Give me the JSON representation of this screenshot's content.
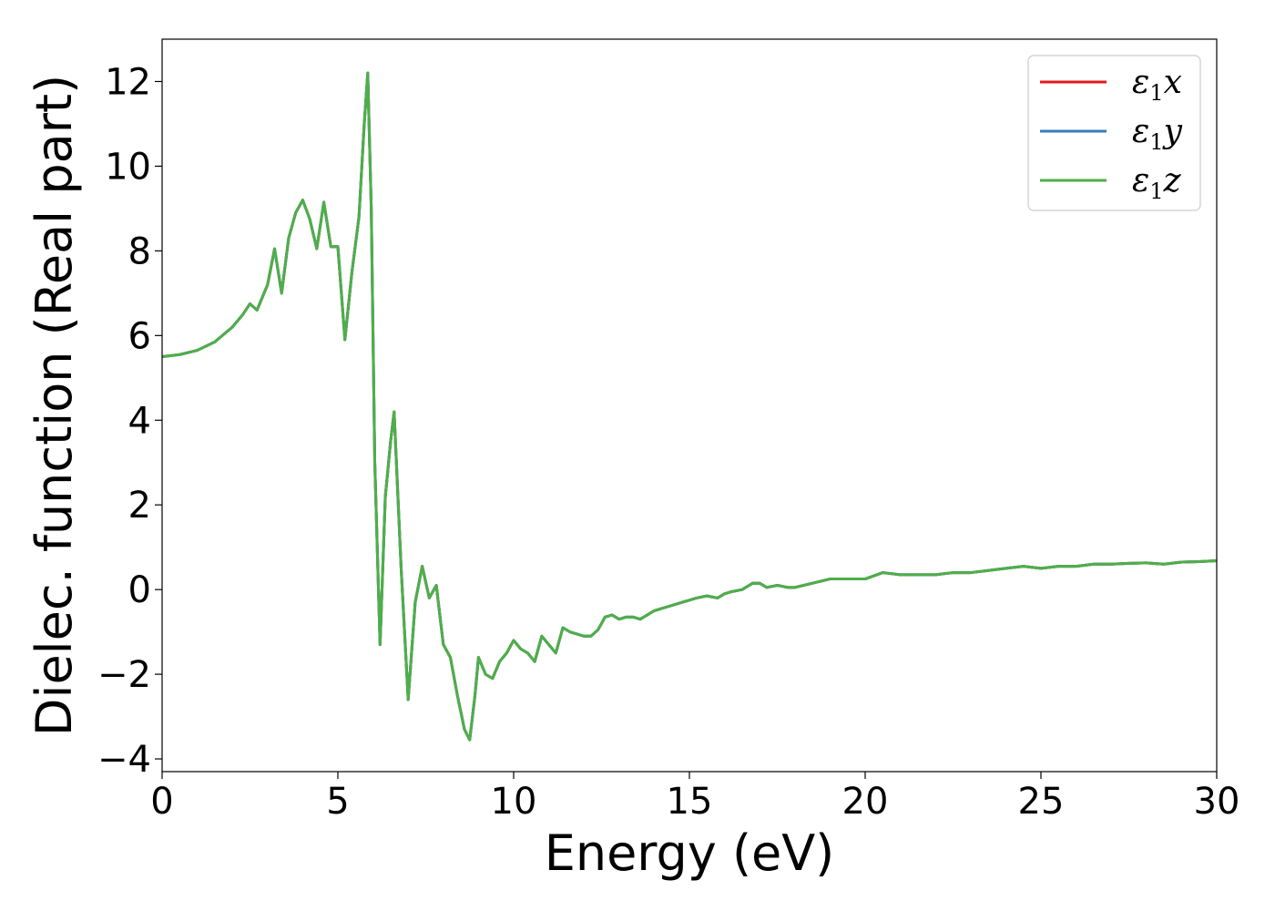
{
  "chart_data": {
    "type": "line",
    "title": "",
    "xlabel": "Energy (eV)",
    "ylabel": "Dielec. function (Real part)",
    "xlim": [
      0,
      30
    ],
    "ylim": [
      -4.3,
      13
    ],
    "xticks": [
      0,
      5,
      10,
      15,
      20,
      25,
      30
    ],
    "yticks": [
      -4,
      -2,
      0,
      2,
      4,
      6,
      8,
      10,
      12
    ],
    "xtick_labels": [
      "0",
      "5",
      "10",
      "15",
      "20",
      "25",
      "30"
    ],
    "ytick_labels": [
      "−4",
      "−2",
      "0",
      "2",
      "4",
      "6",
      "8",
      "10",
      "12"
    ],
    "grid": false,
    "legend_position": "top-right",
    "series": [
      {
        "name": "ε₁x",
        "legend": {
          "main": "ε",
          "sub": "1",
          "suffix": "x"
        },
        "color": "#e41a1c",
        "x": [
          0,
          0.5,
          1,
          1.5,
          2,
          2.3,
          2.5,
          2.7,
          3,
          3.2,
          3.4,
          3.6,
          3.8,
          4,
          4.2,
          4.4,
          4.6,
          4.8,
          5,
          5.2,
          5.4,
          5.6,
          5.75,
          5.85,
          5.95,
          6.05,
          6.2,
          6.35,
          6.5,
          6.6,
          6.8,
          7,
          7.2,
          7.4,
          7.6,
          7.8,
          8,
          8.2,
          8.4,
          8.6,
          8.75,
          8.9,
          9,
          9.2,
          9.4,
          9.6,
          9.8,
          10,
          10.2,
          10.4,
          10.6,
          10.8,
          11,
          11.2,
          11.4,
          11.6,
          11.8,
          12,
          12.2,
          12.4,
          12.6,
          12.8,
          13,
          13.2,
          13.4,
          13.6,
          13.8,
          14,
          14.2,
          14.4,
          14.6,
          14.8,
          15,
          15.2,
          15.5,
          15.8,
          16,
          16.2,
          16.5,
          16.8,
          17,
          17.2,
          17.5,
          17.8,
          18,
          18.5,
          19,
          19.5,
          20,
          20.5,
          21,
          21.5,
          22,
          22.5,
          23,
          23.5,
          24,
          24.5,
          25,
          25.5,
          26,
          26.5,
          27,
          27.5,
          28,
          28.5,
          29,
          29.5,
          30
        ],
        "y": [
          5.5,
          5.55,
          5.65,
          5.85,
          6.2,
          6.5,
          6.75,
          6.6,
          7.2,
          8.05,
          7.0,
          8.3,
          8.9,
          9.2,
          8.75,
          8.05,
          9.15,
          8.1,
          8.1,
          5.9,
          7.5,
          8.8,
          11.0,
          12.2,
          9.0,
          3.0,
          -1.3,
          2.2,
          3.5,
          4.2,
          0.5,
          -2.6,
          -0.3,
          0.55,
          -0.2,
          0.1,
          -1.3,
          -1.6,
          -2.5,
          -3.3,
          -3.55,
          -2.5,
          -1.6,
          -2.0,
          -2.1,
          -1.7,
          -1.5,
          -1.2,
          -1.4,
          -1.5,
          -1.7,
          -1.1,
          -1.3,
          -1.5,
          -0.9,
          -1.0,
          -1.05,
          -1.1,
          -1.1,
          -0.95,
          -0.65,
          -0.6,
          -0.7,
          -0.65,
          -0.65,
          -0.7,
          -0.6,
          -0.5,
          -0.45,
          -0.4,
          -0.35,
          -0.3,
          -0.25,
          -0.2,
          -0.15,
          -0.2,
          -0.1,
          -0.05,
          0.0,
          0.15,
          0.15,
          0.05,
          0.1,
          0.05,
          0.05,
          0.15,
          0.25,
          0.25,
          0.25,
          0.4,
          0.35,
          0.35,
          0.35,
          0.4,
          0.4,
          0.45,
          0.5,
          0.55,
          0.5,
          0.55,
          0.55,
          0.6,
          0.6,
          0.62,
          0.63,
          0.6,
          0.65,
          0.66,
          0.68
        ]
      },
      {
        "name": "ε₁y",
        "legend": {
          "main": "ε",
          "sub": "1",
          "suffix": "y"
        },
        "color": "#377eb8",
        "x": [
          0,
          0.5,
          1,
          1.5,
          2,
          2.3,
          2.5,
          2.7,
          3,
          3.2,
          3.4,
          3.6,
          3.8,
          4,
          4.2,
          4.4,
          4.6,
          4.8,
          5,
          5.2,
          5.4,
          5.6,
          5.75,
          5.85,
          5.95,
          6.05,
          6.2,
          6.35,
          6.5,
          6.6,
          6.8,
          7,
          7.2,
          7.4,
          7.6,
          7.8,
          8,
          8.2,
          8.4,
          8.6,
          8.75,
          8.9,
          9,
          9.2,
          9.4,
          9.6,
          9.8,
          10,
          10.2,
          10.4,
          10.6,
          10.8,
          11,
          11.2,
          11.4,
          11.6,
          11.8,
          12,
          12.2,
          12.4,
          12.6,
          12.8,
          13,
          13.2,
          13.4,
          13.6,
          13.8,
          14,
          14.2,
          14.4,
          14.6,
          14.8,
          15,
          15.2,
          15.5,
          15.8,
          16,
          16.2,
          16.5,
          16.8,
          17,
          17.2,
          17.5,
          17.8,
          18,
          18.5,
          19,
          19.5,
          20,
          20.5,
          21,
          21.5,
          22,
          22.5,
          23,
          23.5,
          24,
          24.5,
          25,
          25.5,
          26,
          26.5,
          27,
          27.5,
          28,
          28.5,
          29,
          29.5,
          30
        ],
        "y": [
          5.5,
          5.55,
          5.65,
          5.85,
          6.2,
          6.5,
          6.75,
          6.6,
          7.2,
          8.05,
          7.0,
          8.3,
          8.9,
          9.2,
          8.75,
          8.05,
          9.15,
          8.1,
          8.1,
          5.9,
          7.5,
          8.8,
          11.0,
          12.2,
          9.0,
          3.0,
          -1.3,
          2.2,
          3.5,
          4.2,
          0.5,
          -2.6,
          -0.3,
          0.55,
          -0.2,
          0.1,
          -1.3,
          -1.6,
          -2.5,
          -3.3,
          -3.55,
          -2.5,
          -1.6,
          -2.0,
          -2.1,
          -1.7,
          -1.5,
          -1.2,
          -1.4,
          -1.5,
          -1.7,
          -1.1,
          -1.3,
          -1.5,
          -0.9,
          -1.0,
          -1.05,
          -1.1,
          -1.1,
          -0.95,
          -0.65,
          -0.6,
          -0.7,
          -0.65,
          -0.65,
          -0.7,
          -0.6,
          -0.5,
          -0.45,
          -0.4,
          -0.35,
          -0.3,
          -0.25,
          -0.2,
          -0.15,
          -0.2,
          -0.1,
          -0.05,
          0.0,
          0.15,
          0.15,
          0.05,
          0.1,
          0.05,
          0.05,
          0.15,
          0.25,
          0.25,
          0.25,
          0.4,
          0.35,
          0.35,
          0.35,
          0.4,
          0.4,
          0.45,
          0.5,
          0.55,
          0.5,
          0.55,
          0.55,
          0.6,
          0.6,
          0.62,
          0.63,
          0.6,
          0.65,
          0.66,
          0.68
        ]
      },
      {
        "name": "ε₁z",
        "legend": {
          "main": "ε",
          "sub": "1",
          "suffix": "z"
        },
        "color": "#4daf4a",
        "x": [
          0,
          0.5,
          1,
          1.5,
          2,
          2.3,
          2.5,
          2.7,
          3,
          3.2,
          3.4,
          3.6,
          3.8,
          4,
          4.2,
          4.4,
          4.6,
          4.8,
          5,
          5.2,
          5.4,
          5.6,
          5.75,
          5.85,
          5.95,
          6.05,
          6.2,
          6.35,
          6.5,
          6.6,
          6.8,
          7,
          7.2,
          7.4,
          7.6,
          7.8,
          8,
          8.2,
          8.4,
          8.6,
          8.75,
          8.9,
          9,
          9.2,
          9.4,
          9.6,
          9.8,
          10,
          10.2,
          10.4,
          10.6,
          10.8,
          11,
          11.2,
          11.4,
          11.6,
          11.8,
          12,
          12.2,
          12.4,
          12.6,
          12.8,
          13,
          13.2,
          13.4,
          13.6,
          13.8,
          14,
          14.2,
          14.4,
          14.6,
          14.8,
          15,
          15.2,
          15.5,
          15.8,
          16,
          16.2,
          16.5,
          16.8,
          17,
          17.2,
          17.5,
          17.8,
          18,
          18.5,
          19,
          19.5,
          20,
          20.5,
          21,
          21.5,
          22,
          22.5,
          23,
          23.5,
          24,
          24.5,
          25,
          25.5,
          26,
          26.5,
          27,
          27.5,
          28,
          28.5,
          29,
          29.5,
          30
        ],
        "y": [
          5.5,
          5.55,
          5.65,
          5.85,
          6.2,
          6.5,
          6.75,
          6.6,
          7.2,
          8.05,
          7.0,
          8.3,
          8.9,
          9.2,
          8.75,
          8.05,
          9.15,
          8.1,
          8.1,
          5.9,
          7.5,
          8.8,
          11.0,
          12.2,
          9.0,
          3.0,
          -1.3,
          2.2,
          3.5,
          4.2,
          0.5,
          -2.6,
          -0.3,
          0.55,
          -0.2,
          0.1,
          -1.3,
          -1.6,
          -2.5,
          -3.3,
          -3.55,
          -2.5,
          -1.6,
          -2.0,
          -2.1,
          -1.7,
          -1.5,
          -1.2,
          -1.4,
          -1.5,
          -1.7,
          -1.1,
          -1.3,
          -1.5,
          -0.9,
          -1.0,
          -1.05,
          -1.1,
          -1.1,
          -0.95,
          -0.65,
          -0.6,
          -0.7,
          -0.65,
          -0.65,
          -0.7,
          -0.6,
          -0.5,
          -0.45,
          -0.4,
          -0.35,
          -0.3,
          -0.25,
          -0.2,
          -0.15,
          -0.2,
          -0.1,
          -0.05,
          0.0,
          0.15,
          0.15,
          0.05,
          0.1,
          0.05,
          0.05,
          0.15,
          0.25,
          0.25,
          0.25,
          0.4,
          0.35,
          0.35,
          0.35,
          0.4,
          0.4,
          0.45,
          0.5,
          0.55,
          0.5,
          0.55,
          0.55,
          0.6,
          0.6,
          0.62,
          0.63,
          0.6,
          0.65,
          0.66,
          0.68
        ]
      }
    ]
  }
}
